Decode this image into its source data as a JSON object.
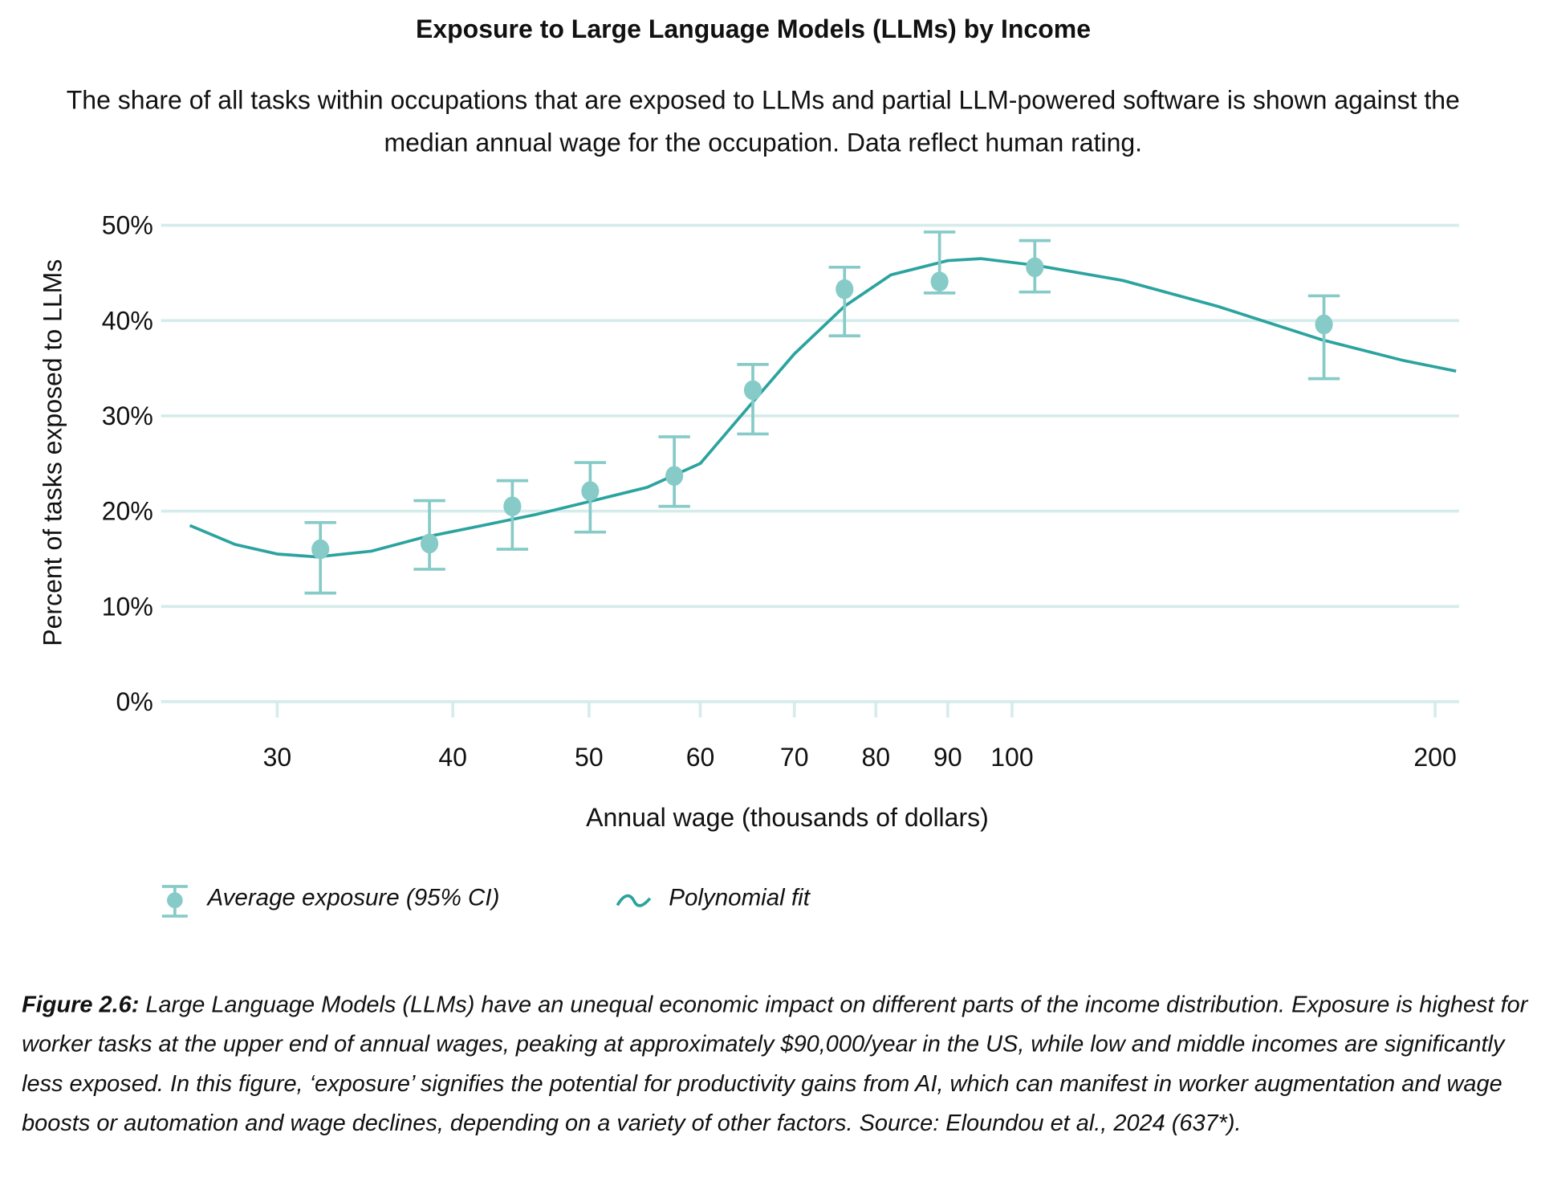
{
  "chart_data": {
    "type": "scatter",
    "title": "Exposure to Large Language Models (LLMs) by Income",
    "subtitle": "The share of all tasks within occupations that are exposed to LLMs and partial LLM-powered software is shown against the median annual wage for the occupation. Data reflect human rating.",
    "xlabel": "Annual wage (thousands of dollars)",
    "ylabel": "Percent of tasks exposed to LLMs",
    "xscale": "log",
    "xlim": [
      24.8,
      208
    ],
    "ylim": [
      0,
      50
    ],
    "xticks": [
      30,
      40,
      50,
      60,
      70,
      80,
      90,
      100,
      200
    ],
    "xtick_labels": [
      "30",
      "40",
      "50",
      "60",
      "70",
      "80",
      "90",
      "100",
      "200"
    ],
    "yticks": [
      0,
      10,
      20,
      30,
      40,
      50
    ],
    "ytick_labels": [
      "0%",
      "10%",
      "20%",
      "30%",
      "40%",
      "50%"
    ],
    "grid": "horizontal",
    "legend_position": "bottom-left",
    "series": [
      {
        "name": "Average exposure (95% CI)",
        "kind": "points-with-errorbars",
        "color": "#86cbc7",
        "x": [
          32.2,
          38.5,
          44.1,
          50.1,
          57.5,
          65.4,
          76.0,
          88.8,
          103.8,
          166.7
        ],
        "y": [
          16.0,
          16.6,
          20.5,
          22.1,
          23.7,
          32.7,
          43.3,
          44.1,
          45.6,
          39.6
        ],
        "ci_low": [
          11.4,
          13.9,
          16.0,
          17.8,
          20.5,
          28.1,
          38.4,
          42.9,
          43.0,
          33.9
        ],
        "ci_high": [
          18.8,
          21.1,
          23.2,
          25.1,
          27.8,
          35.4,
          45.6,
          49.3,
          48.4,
          42.6
        ]
      },
      {
        "name": "Polynomial fit",
        "kind": "line",
        "color": "#2ba39f",
        "x": [
          26,
          28,
          30,
          32,
          35,
          38,
          42,
          46,
          50,
          55,
          60,
          65,
          70,
          76,
          82,
          90,
          95,
          104,
          120,
          140,
          166,
          190,
          207
        ],
        "y": [
          18.5,
          16.5,
          15.5,
          15.2,
          15.8,
          17.2,
          18.5,
          19.7,
          21.0,
          22.5,
          25.0,
          31.0,
          36.5,
          41.5,
          44.8,
          46.3,
          46.5,
          45.8,
          44.2,
          41.5,
          38.0,
          35.8,
          34.7
        ]
      }
    ]
  },
  "legend": {
    "points_label": "Average exposure (95% CI)",
    "line_label": "Polynomial fit"
  },
  "caption": {
    "label": "Figure 2.6:",
    "text": " Large Language Models (LLMs) have an unequal economic impact on different parts of the income distribution. Exposure is highest for worker tasks at the upper end of annual wages, peaking at approximately $90,000/year in the US, while low and middle incomes are significantly less exposed. In this figure, ‘exposure’ signifies the potential for productivity gains from AI, which can manifest in worker augmentation and wage boosts or automation and wage declines, depending on a variety of other factors. Source: Eloundou et al., 2024 (637*)."
  },
  "colors": {
    "grid": "#d5eceb",
    "points": "#86cbc7",
    "line": "#2ba39f"
  }
}
